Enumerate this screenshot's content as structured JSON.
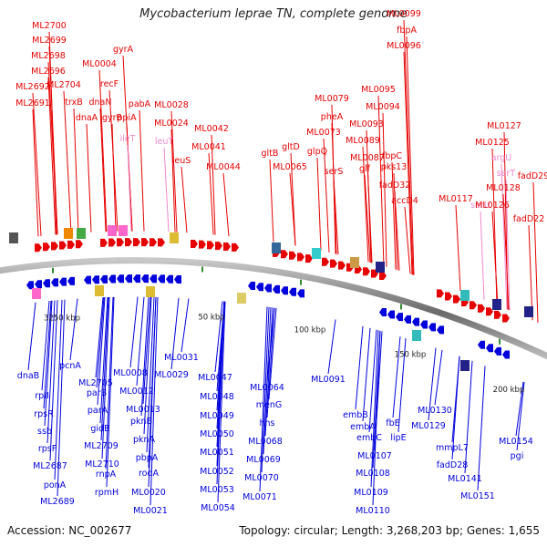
{
  "title": "Mycobacterium leprae TN, complete genome",
  "accession": "Accession: NC_002677",
  "topology": "Topology: circular; Length: 3,268,203 bp; Genes: 1,655",
  "colors": {
    "forward": "#e60000",
    "reverse": "#0000dd",
    "rna": "#ee88cc",
    "backbone": "#888888",
    "tick": "#2e8b2e"
  },
  "ticks": [
    "3250 kbp",
    "50 kbp",
    "100 kbp",
    "150 kbp",
    "200 kbp"
  ],
  "upper_labels": [
    "ML2700",
    "ML2699",
    "ML2698",
    "ML2696",
    "ML2692",
    "ML2691",
    "ML2704",
    "trxB",
    "gyrA",
    "ML0004",
    "recF",
    "dnaN",
    "gyrB",
    "dnaA",
    "ppiA",
    "ileT",
    "pabA",
    "ML0028",
    "ML0024",
    "leuT",
    "leuS",
    "ML0042",
    "ML0041",
    "ML0044",
    "gltB",
    "gltD",
    "ML0065",
    "ML0079",
    "pheA",
    "ML0073",
    "glpQ",
    "serS",
    "ML0099",
    "fbpA",
    "ML0096",
    "ML0095",
    "ML0094",
    "ML0093",
    "ML0089",
    "fbpC",
    "ML0087",
    "glf",
    "pks13",
    "fadD32",
    "accD4",
    "ML0127",
    "ML0125",
    "argU",
    "serT",
    "fadD29",
    "ML0128",
    "serU",
    "ML0117",
    "ML0126",
    "fadD22"
  ],
  "lower_labels": [
    "dnaB",
    "rpII",
    "rpsR",
    "ssb",
    "rpsF",
    "ML2687",
    "ponA",
    "ML2689",
    "pcnA",
    "ML2705",
    "parB",
    "parA",
    "gidB",
    "ML2709",
    "ML2710",
    "rnpA",
    "rpmH",
    "ML0008",
    "ML0012",
    "ML0013",
    "pknB",
    "pknA",
    "pbpA",
    "rodA",
    "ML0020",
    "ML0021",
    "ML0031",
    "ML0029",
    "ML0047",
    "ML0048",
    "ML0049",
    "ML0050",
    "ML0051",
    "ML0052",
    "ML0053",
    "ML0054",
    "ML0064",
    "menG",
    "hns",
    "ML0068",
    "ML0069",
    "ML0070",
    "ML0071",
    "ML0091",
    "embB",
    "embA",
    "embC",
    "ML0107",
    "ML0108",
    "ML0109",
    "ML0110",
    "fbE",
    "lipE",
    "ML0130",
    "ML0129",
    "mmpL7",
    "fadD28",
    "ML0141",
    "ML0151",
    "pgi",
    "ML0154"
  ]
}
